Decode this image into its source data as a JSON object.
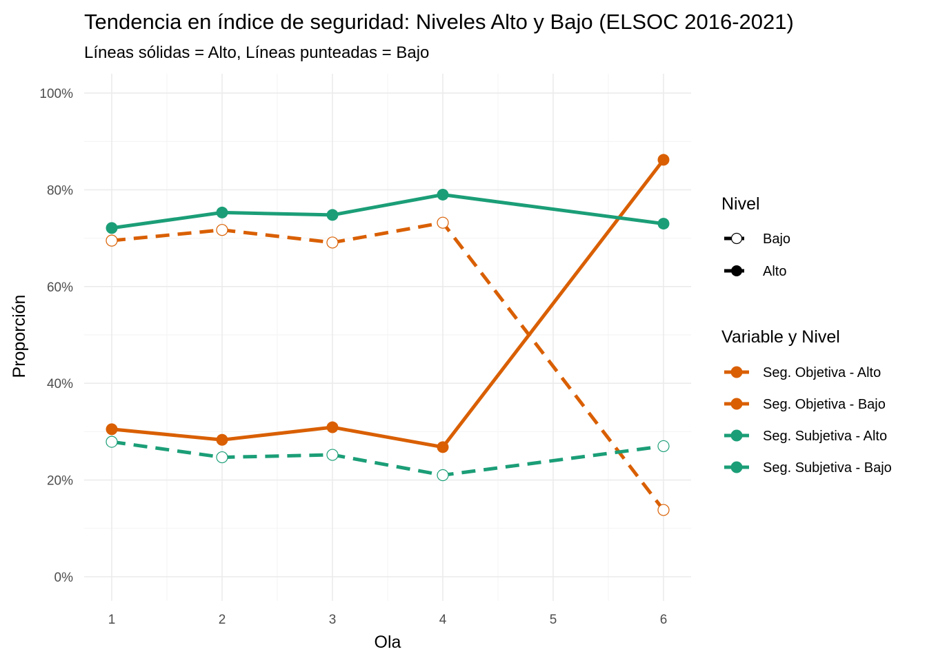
{
  "chart_data": {
    "type": "line",
    "title": "Tendencia en índice de seguridad: Niveles Alto y Bajo (ELSOC 2016-2021)",
    "subtitle": "Líneas sólidas = Alto, Líneas punteadas = Bajo",
    "xlabel": "Ola",
    "ylabel": "Proporción",
    "x_ticks": [
      "1",
      "2",
      "3",
      "4",
      "5",
      "6"
    ],
    "y_ticks": [
      "0%",
      "20%",
      "40%",
      "60%",
      "80%",
      "100%"
    ],
    "xlim": [
      0.75,
      6.25
    ],
    "ylim": [
      -0.05,
      1.04
    ],
    "grid": true,
    "series": [
      {
        "name": "Seg. Objetiva - Alto",
        "variable": "Seg. Objetiva",
        "nivel": "Alto",
        "color": "#D95F02",
        "x": [
          1,
          2,
          3,
          4,
          6
        ],
        "values": [
          0.305,
          0.283,
          0.309,
          0.268,
          0.862
        ]
      },
      {
        "name": "Seg. Objetiva - Bajo",
        "variable": "Seg. Objetiva",
        "nivel": "Bajo",
        "color": "#D95F02",
        "x": [
          1,
          2,
          3,
          4,
          6
        ],
        "values": [
          0.695,
          0.717,
          0.691,
          0.732,
          0.138
        ]
      },
      {
        "name": "Seg. Subjetiva - Alto",
        "variable": "Seg. Subjetiva",
        "nivel": "Alto",
        "color": "#1B9E77",
        "x": [
          1,
          2,
          3,
          4,
          6
        ],
        "values": [
          0.721,
          0.753,
          0.748,
          0.79,
          0.73
        ]
      },
      {
        "name": "Seg. Subjetiva - Bajo",
        "variable": "Seg. Subjetiva",
        "nivel": "Bajo",
        "color": "#1B9E77",
        "x": [
          1,
          2,
          3,
          4,
          6
        ],
        "values": [
          0.279,
          0.247,
          0.252,
          0.21,
          0.27
        ]
      }
    ],
    "legend": {
      "position": "right",
      "nivel_title": "Nivel",
      "nivel_items": [
        {
          "label": "Bajo",
          "style": "dashed-open"
        },
        {
          "label": "Alto",
          "style": "solid-filled"
        }
      ],
      "variable_title": "Variable y Nivel",
      "variable_items": [
        {
          "label": "Seg. Objetiva - Alto",
          "color": "#D95F02"
        },
        {
          "label": "Seg. Objetiva - Bajo",
          "color": "#D95F02"
        },
        {
          "label": "Seg. Subjetiva - Alto",
          "color": "#1B9E77"
        },
        {
          "label": "Seg. Subjetiva - Bajo",
          "color": "#1B9E77"
        }
      ]
    }
  }
}
